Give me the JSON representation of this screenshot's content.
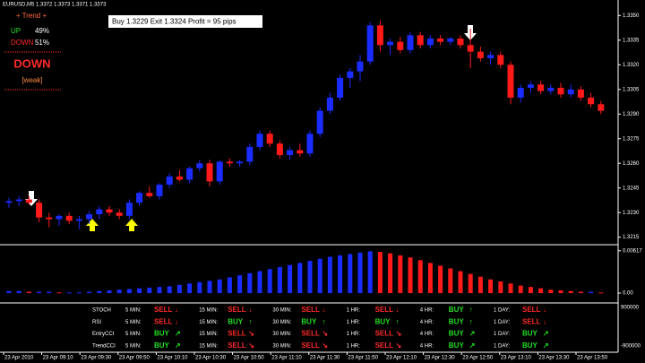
{
  "header": {
    "symbol_line": "EURUSD,M5  1.3372 1.3373 1.3371 1.3373"
  },
  "trend_box": {
    "title": "+ Trend +",
    "up_label": "UP",
    "up_value": "49%",
    "down_label": "DOWN",
    "down_value": "51%",
    "verdict": "DOWN",
    "strength": "[weak]"
  },
  "annotation": "Buy 1.3229 Exit 1.3324 Profit = 95 pips",
  "chart_data": [
    {
      "type": "candlestick",
      "up_color": "#1a2cff",
      "down_color": "#ff1a1a",
      "open": [
        1.3236,
        1.3237,
        1.3238,
        1.3236,
        1.3227,
        1.3226,
        1.3228,
        1.3225,
        1.3226,
        1.3229,
        1.3232,
        1.323,
        1.3228,
        1.3236,
        1.3242,
        1.324,
        1.3247,
        1.3252,
        1.325,
        1.3257,
        1.326,
        1.3249,
        1.3261,
        1.326,
        1.3261,
        1.327,
        1.3278,
        1.3272,
        1.3265,
        1.3268,
        1.3266,
        1.3278,
        1.3292,
        1.33,
        1.3312,
        1.3316,
        1.3322,
        1.3344,
        1.3332,
        1.3334,
        1.3329,
        1.3338,
        1.3332,
        1.3336,
        1.3334,
        1.3336,
        1.3332,
        1.3328,
        1.3324,
        1.3326,
        1.332,
        1.33,
        1.3306,
        1.3308,
        1.3304,
        1.3306,
        1.3302,
        1.3305,
        1.33,
        1.3296
      ],
      "high": [
        1.3239,
        1.324,
        1.324,
        1.3238,
        1.323,
        1.3229,
        1.323,
        1.3228,
        1.3231,
        1.3234,
        1.3234,
        1.3232,
        1.3238,
        1.3243,
        1.3246,
        1.3248,
        1.3254,
        1.3256,
        1.3258,
        1.3262,
        1.3262,
        1.3262,
        1.3263,
        1.3262,
        1.3272,
        1.328,
        1.328,
        1.3274,
        1.327,
        1.3272,
        1.328,
        1.3294,
        1.3303,
        1.3314,
        1.3318,
        1.3326,
        1.3346,
        1.3347,
        1.3336,
        1.3337,
        1.334,
        1.334,
        1.3338,
        1.3338,
        1.3337,
        1.3338,
        1.3342,
        1.3331,
        1.3328,
        1.3328,
        1.3322,
        1.3308,
        1.331,
        1.331,
        1.3308,
        1.3309,
        1.3308,
        1.3307,
        1.3303,
        1.3298
      ],
      "low": [
        1.3233,
        1.3234,
        1.3235,
        1.3224,
        1.3221,
        1.3222,
        1.3223,
        1.322,
        1.3223,
        1.3226,
        1.3228,
        1.3226,
        1.3226,
        1.3234,
        1.3239,
        1.3238,
        1.3245,
        1.3249,
        1.3248,
        1.3255,
        1.3246,
        1.3247,
        1.3258,
        1.3258,
        1.3259,
        1.3268,
        1.327,
        1.3263,
        1.3262,
        1.3264,
        1.3264,
        1.3276,
        1.329,
        1.3298,
        1.3306,
        1.331,
        1.332,
        1.3328,
        1.3326,
        1.3327,
        1.3327,
        1.333,
        1.333,
        1.3332,
        1.3332,
        1.333,
        1.3318,
        1.3322,
        1.332,
        1.3318,
        1.3296,
        1.3297,
        1.3303,
        1.3302,
        1.3302,
        1.33,
        1.33,
        1.3298,
        1.3294,
        1.329
      ],
      "close": [
        1.3237,
        1.3238,
        1.3236,
        1.3227,
        1.3226,
        1.3228,
        1.3225,
        1.3226,
        1.3229,
        1.3232,
        1.323,
        1.3228,
        1.3236,
        1.3242,
        1.324,
        1.3247,
        1.3252,
        1.325,
        1.3257,
        1.326,
        1.3249,
        1.3261,
        1.326,
        1.3261,
        1.327,
        1.3278,
        1.3272,
        1.3265,
        1.3268,
        1.3266,
        1.3278,
        1.3292,
        1.33,
        1.3312,
        1.3316,
        1.3322,
        1.3344,
        1.3332,
        1.3334,
        1.3329,
        1.3338,
        1.3332,
        1.3336,
        1.3334,
        1.3336,
        1.3332,
        1.3328,
        1.3324,
        1.3326,
        1.332,
        1.33,
        1.3306,
        1.3308,
        1.3304,
        1.3306,
        1.3302,
        1.3305,
        1.33,
        1.3296,
        1.3292
      ],
      "ylim": [
        1.3211,
        1.3354
      ],
      "yticks": [
        {
          "value": 1.335,
          "label": "1.3350"
        },
        1.3335,
        {
          "value": 1.332,
          "label": "1.3320"
        },
        1.3305,
        {
          "value": 1.329,
          "label": "1.3290"
        },
        1.3275,
        {
          "value": 1.326,
          "label": "1.3260"
        },
        1.3245,
        {
          "value": 1.323,
          "label": "1.3230"
        },
        1.3215
      ]
    },
    {
      "type": "bar",
      "up_color": "#1a2cff",
      "down_color": "#ff1a1a",
      "values": [
        0.0003,
        0.0003,
        0.0002,
        0.0002,
        0.0002,
        0.0001,
        0.0001,
        0.0001,
        0.0002,
        0.0003,
        0.0004,
        0.0005,
        0.0006,
        0.0007,
        0.0008,
        0.0009,
        0.001,
        0.0012,
        0.0014,
        0.0016,
        0.0018,
        0.002,
        0.0023,
        0.0026,
        0.0029,
        0.0032,
        0.0035,
        0.0038,
        0.0041,
        0.0044,
        0.0047,
        0.005,
        0.0053,
        0.0055,
        0.0057,
        0.0059,
        0.0061,
        0.006,
        0.0058,
        0.0055,
        0.0052,
        0.0048,
        0.0044,
        0.004,
        0.0036,
        0.0032,
        0.0028,
        0.0024,
        0.002,
        0.0017,
        0.0014,
        0.0011,
        0.0009,
        0.0007,
        0.0005,
        0.0004,
        0.0003,
        0.0002,
        0.0002,
        0.0001
      ],
      "ylim": [
        -0.0013,
        0.0068
      ],
      "yticks": [
        0.00617,
        {
          "value": 0,
          "label": "0.00"
        }
      ]
    }
  ],
  "signals": {
    "colors": {
      "SELL": "#ff2a2a",
      "BUY": "#22e022"
    },
    "rows": [
      {
        "name": "STOCH",
        "cells": [
          {
            "tf": "5 MIN:",
            "signal": "SELL",
            "arrow": "↓"
          },
          {
            "tf": "15 MIN:",
            "signal": "SELL",
            "arrow": "↓"
          },
          {
            "tf": "30 MIN:",
            "signal": "SELL",
            "arrow": "↓"
          },
          {
            "tf": "1 HR:",
            "signal": "SELL",
            "arrow": "↓"
          },
          {
            "tf": "4 HR:",
            "signal": "BUY",
            "arrow": "↑"
          },
          {
            "tf": "1 DAY:",
            "signal": "SELL",
            "arrow": "↓"
          }
        ]
      },
      {
        "name": "RSI",
        "cells": [
          {
            "tf": "5 MIN:",
            "signal": "SELL",
            "arrow": "↓"
          },
          {
            "tf": "15 MIN:",
            "signal": "BUY",
            "arrow": "↑"
          },
          {
            "tf": "30 MIN:",
            "signal": "BUY",
            "arrow": "↑"
          },
          {
            "tf": "1 HR:",
            "signal": "BUY",
            "arrow": "↑"
          },
          {
            "tf": "4 HR:",
            "signal": "BUY",
            "arrow": "↑"
          },
          {
            "tf": "1 DAY:",
            "signal": "SELL",
            "arrow": "↓"
          }
        ]
      },
      {
        "name": "EntryCCI",
        "cells": [
          {
            "tf": "5 MIN:",
            "signal": "BUY",
            "arrow": "↗"
          },
          {
            "tf": "15 MIN:",
            "signal": "SELL",
            "arrow": "↘"
          },
          {
            "tf": "30 MIN:",
            "signal": "SELL",
            "arrow": "↘"
          },
          {
            "tf": "1 HR:",
            "signal": "SELL",
            "arrow": "↘"
          },
          {
            "tf": "4 HR:",
            "signal": "BUY",
            "arrow": "↗"
          },
          {
            "tf": "1 DAY:",
            "signal": "BUY",
            "arrow": "↗"
          }
        ]
      },
      {
        "name": "TrendCCI",
        "cells": [
          {
            "tf": "5 MIN:",
            "signal": "BUY",
            "arrow": "↗"
          },
          {
            "tf": "15 MIN:",
            "signal": "SELL",
            "arrow": "↘"
          },
          {
            "tf": "30 MIN:",
            "signal": "SELL",
            "arrow": "↘"
          },
          {
            "tf": "1 HR:",
            "signal": "SELL",
            "arrow": "↘"
          },
          {
            "tf": "4 HR:",
            "signal": "BUY",
            "arrow": "↗"
          },
          {
            "tf": "1 DAY:",
            "signal": "BUY",
            "arrow": "↗"
          }
        ]
      }
    ]
  },
  "table_axis": [
    "900000",
    "-900000"
  ],
  "time_labels": [
    "23 Apr 2010",
    "23 Apr 09:10",
    "23 Apr 09:30",
    "23 Apr 09:50",
    "23 Apr 10:10",
    "23 Apr 10:30",
    "23 Apr 10:50",
    "23 Apr 11:10",
    "23 Apr 11:30",
    "23 Apr 11:50",
    "23 Apr 12:10",
    "23 Apr 12:30",
    "23 Apr 12:50",
    "23 Apr 13:10",
    "23 Apr 13:30",
    "23 Apr 13:50"
  ]
}
